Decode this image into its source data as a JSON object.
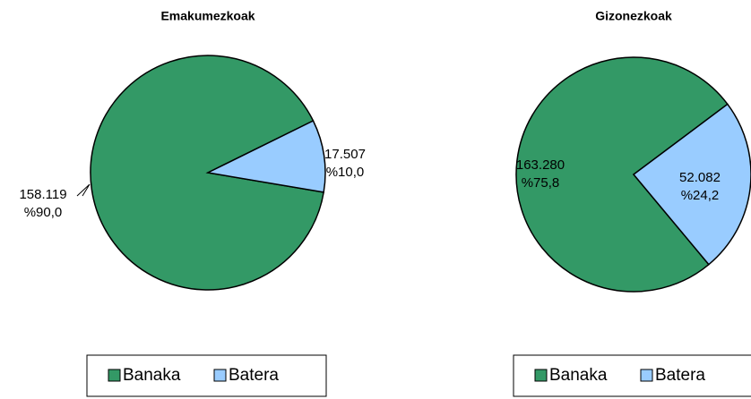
{
  "chart_data": [
    {
      "type": "pie",
      "title": "Emakumezkoak",
      "categories": [
        "Banaka",
        "Batera"
      ],
      "values": [
        158119,
        17507
      ],
      "value_labels": [
        "158.119",
        "17.507"
      ],
      "percent_labels": [
        "%90,0",
        "%10,0"
      ],
      "colors": [
        "#339966",
        "#99ccff"
      ],
      "legend": "bottom"
    },
    {
      "type": "pie",
      "title": "Gizonezkoak",
      "categories": [
        "Banaka",
        "Batera"
      ],
      "values": [
        163280,
        52082
      ],
      "value_labels": [
        "163.280",
        "52.082"
      ],
      "percent_labels": [
        "%75,8",
        "%24,2"
      ],
      "colors": [
        "#339966",
        "#99ccff"
      ],
      "legend": "bottom"
    }
  ]
}
